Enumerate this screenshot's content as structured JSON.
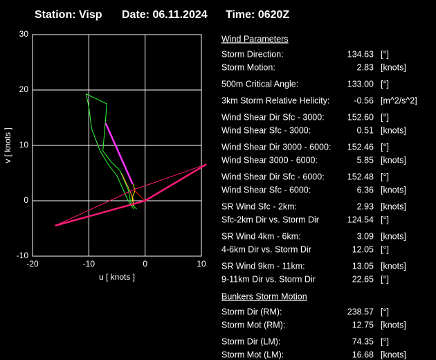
{
  "header": {
    "station": "Station: Visp",
    "date": "Date: 06.11.2024",
    "time": "Time: 0620Z"
  },
  "chart_data": {
    "type": "line",
    "xlabel": "u  [ knots ]",
    "ylabel": "v  [ knots ]",
    "xlim": [
      -20,
      10
    ],
    "ylim": [
      -10,
      30
    ],
    "xticks": [
      -20,
      -10,
      0,
      10
    ],
    "yticks": [
      -10,
      0,
      10,
      20,
      30
    ],
    "grid": true,
    "series": [
      {
        "color": "#33ff33",
        "x": [
          -1.5,
          -2.5,
          -3,
          -4.5,
          -5.5,
          -6,
          -7.5,
          -7,
          -6.8,
          -10.5,
          -10,
          -9.5,
          -8,
          -6.5,
          -5,
          -3,
          -2
        ],
        "values": [
          -1.5,
          -0.5,
          2,
          5.5,
          6.5,
          7,
          9,
          15,
          17.5,
          19.3,
          17,
          13,
          9,
          6.5,
          4.5,
          0,
          -1.5
        ]
      },
      {
        "color": "#ff9933",
        "x": [
          -2,
          -2.8,
          -3.5,
          -4.2
        ],
        "values": [
          0,
          2,
          3.5,
          5
        ]
      },
      {
        "color": "#ffff00",
        "x": [
          -2,
          -2.3,
          -1.8,
          -2.1
        ],
        "values": [
          -1,
          0.5,
          1.8,
          3
        ]
      },
      {
        "color": "#ff33ff",
        "x": [
          -2.2,
          -7
        ],
        "values": [
          3,
          14
        ]
      },
      {
        "color": "#ff1a75",
        "x": [
          -16,
          0,
          10.9
        ],
        "values": [
          -4.5,
          0,
          6.6
        ]
      },
      {
        "color": "#ff1a75",
        "x": [
          -16,
          -2,
          10.9
        ],
        "values": [
          -4.5,
          2,
          6.6
        ]
      },
      {
        "color": "#ff0000",
        "x": [
          -2,
          0
        ],
        "values": [
          2,
          0
        ]
      }
    ]
  },
  "parameters": {
    "wind_title": "Wind Parameters",
    "wind_groups": [
      [
        {
          "label": "Storm Direction:",
          "value": "134.63",
          "unit": "[°]",
          "color": "#ff2020"
        },
        {
          "label": "Storm Motion:",
          "value": "2.83",
          "unit": "[knots]",
          "color": "#ff2020"
        }
      ],
      [
        {
          "label": "500m Critical Angle:",
          "value": "133.00",
          "unit": "[°]",
          "color": "#e0a0ff"
        }
      ],
      [
        {
          "label": "3km Storm Relative Helicity:",
          "value": "-0.56",
          "unit": "[m^2/s^2]",
          "color": "#33cc33"
        }
      ],
      [
        {
          "label": "Wind Shear Dir Sfc - 3000:",
          "value": "152.60",
          "unit": "[°]",
          "color": "#00e5ee"
        },
        {
          "label": "Wind Shear Sfc - 3000:",
          "value": "0.51",
          "unit": "[knots]",
          "color": "#00e5ee"
        }
      ],
      [
        {
          "label": "Wind Shear Dir 3000 - 6000:",
          "value": "152.46",
          "unit": "[°]",
          "color": "#00e5ee"
        },
        {
          "label": "Wind Shear 3000 - 6000:",
          "value": "5.85",
          "unit": "[knots]",
          "color": "#00e5ee"
        }
      ],
      [
        {
          "label": "Wind Shear Dir Sfc - 6000:",
          "value": "152.48",
          "unit": "[°]",
          "color": "#00e5ee"
        },
        {
          "label": "Wind Shear Sfc - 6000:",
          "value": "6.36",
          "unit": "[knots]",
          "color": "#00e5ee"
        }
      ],
      [
        {
          "label": "SR Wind Sfc - 2km:",
          "value": "2.93",
          "unit": "[knots]",
          "color": "#ffff00"
        },
        {
          "label": "Sfc-2km Dir vs. Storm Dir",
          "value": "124.54",
          "unit": "[°]",
          "color": "#ffff00"
        }
      ],
      [
        {
          "label": "SR Wind 4km - 6km:",
          "value": "3.09",
          "unit": "[knots]",
          "color": "#ff9933"
        },
        {
          "label": "4-6km Dir vs. Storm Dir",
          "value": "12.05",
          "unit": "[°]",
          "color": "#ff9933"
        }
      ],
      [
        {
          "label": "SR Wind 9km - 11km:",
          "value": "13.05",
          "unit": "[knots]",
          "color": "#ff33ff"
        },
        {
          "label": "9-11km Dir vs. Storm Dir",
          "value": "22.65",
          "unit": "[°]",
          "color": "#ff33ff"
        }
      ]
    ],
    "bunkers_title": "Bunkers Storm Motion",
    "bunkers_groups": [
      [
        {
          "label": "Storm Dir (RM):",
          "value": "238.57",
          "unit": "[°]",
          "color": "#ff1a75"
        },
        {
          "label": "Storm Mot (RM):",
          "value": "12.75",
          "unit": "[knots]",
          "color": "#ff1a75"
        }
      ],
      [
        {
          "label": "Storm Dir (LM):",
          "value": "74.35",
          "unit": "[°]",
          "color": "#ff1a75"
        },
        {
          "label": "Storm Mot (LM):",
          "value": "16.68",
          "unit": "[knots]",
          "color": "#ff1a75"
        }
      ]
    ]
  }
}
